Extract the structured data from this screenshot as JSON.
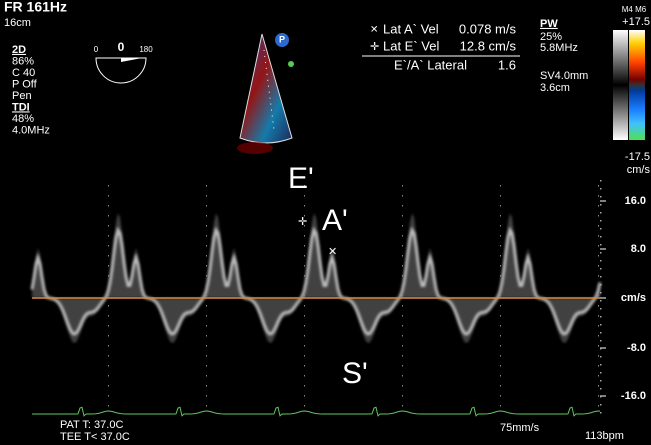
{
  "header": {
    "frame_rate": "FR 161Hz",
    "depth": "16cm"
  },
  "left_params": [
    "2D",
    "86%",
    "C 40",
    "P Off",
    "Pen",
    "TDI",
    "48%",
    "4.0MHz"
  ],
  "angle_indicator": {
    "min": "0",
    "current": "0",
    "max": "180"
  },
  "probe_badge": "P",
  "measurements": [
    {
      "label": "Lat A` Vel",
      "value": "0.078 m/s"
    },
    {
      "label": "Lat E` Vel",
      "value": "12.8 cm/s"
    }
  ],
  "ratio": {
    "label": "E`/A` Lateral",
    "value": "1.6"
  },
  "right_params": [
    "PW",
    "25%",
    "5.8MHz",
    "SV4.0mm",
    "3.6cm"
  ],
  "color_bar": {
    "mode": "M4 M6",
    "max": "+17.5",
    "min": "-17.5",
    "unit": "cm/s"
  },
  "wave_labels": [
    "E'",
    "A'",
    "S'"
  ],
  "velocity_scale": [
    "16.0",
    "8.0",
    "cm/s",
    "-8.0",
    "-16.0"
  ],
  "footer": {
    "patient_temp": "PAT T: 37.0C",
    "tee_temp": "TEE T< 37.0C",
    "sweep": "75mm/s",
    "heart_rate": "113bpm"
  }
}
